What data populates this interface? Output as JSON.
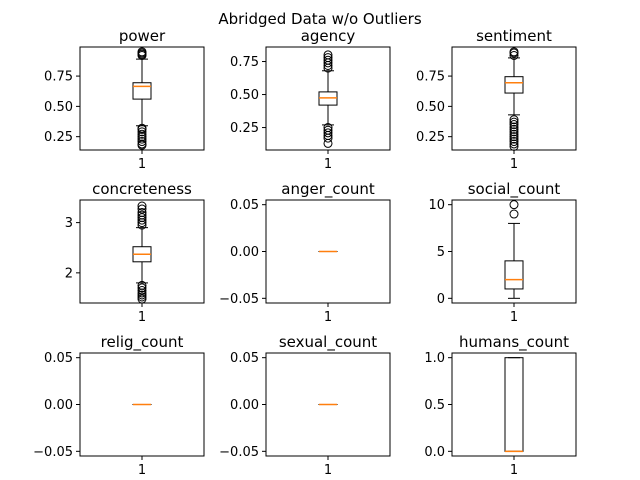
{
  "figure": {
    "suptitle": "Abridged Data w/o Outliers"
  },
  "colors": {
    "median": "#ff7f0e",
    "box": "#000000",
    "background": "#ffffff"
  },
  "chart_data": [
    {
      "type": "box",
      "title": "power",
      "categories": [
        "1"
      ],
      "ylim": [
        0.14,
        0.99
      ],
      "yticks": [
        0.25,
        0.5,
        0.75
      ],
      "yticklabels": [
        "0.25",
        "0.50",
        "0.75"
      ],
      "box": {
        "whislo": 0.34,
        "q1": 0.56,
        "med": 0.665,
        "q3": 0.695,
        "whishi": 0.89
      },
      "fliers": [
        0.18,
        0.19,
        0.21,
        0.23,
        0.25,
        0.27,
        0.29,
        0.31,
        0.32,
        0.92,
        0.93,
        0.94,
        0.95
      ]
    },
    {
      "type": "box",
      "title": "agency",
      "categories": [
        "1"
      ],
      "ylim": [
        0.08,
        0.86
      ],
      "yticks": [
        0.25,
        0.5,
        0.75
      ],
      "yticklabels": [
        "0.25",
        "0.50",
        "0.75"
      ],
      "box": {
        "whislo": 0.27,
        "q1": 0.42,
        "med": 0.475,
        "q3": 0.52,
        "whishi": 0.68
      },
      "fliers": [
        0.13,
        0.17,
        0.19,
        0.21,
        0.23,
        0.25,
        0.7,
        0.72,
        0.74,
        0.76,
        0.78,
        0.8
      ]
    },
    {
      "type": "box",
      "title": "sentiment",
      "categories": [
        "1"
      ],
      "ylim": [
        0.14,
        0.99
      ],
      "yticks": [
        0.25,
        0.5,
        0.75
      ],
      "yticklabels": [
        "0.25",
        "0.50",
        "0.75"
      ],
      "box": {
        "whislo": 0.43,
        "q1": 0.61,
        "med": 0.695,
        "q3": 0.745,
        "whishi": 0.9
      },
      "fliers": [
        0.17,
        0.19,
        0.21,
        0.23,
        0.25,
        0.27,
        0.29,
        0.31,
        0.33,
        0.35,
        0.37,
        0.39,
        0.92,
        0.94,
        0.95
      ]
    },
    {
      "type": "box",
      "title": "concreteness",
      "categories": [
        "1"
      ],
      "ylim": [
        1.4,
        3.45
      ],
      "yticks": [
        2,
        3
      ],
      "yticklabels": [
        "2",
        "3"
      ],
      "box": {
        "whislo": 1.8,
        "q1": 2.22,
        "med": 2.37,
        "q3": 2.52,
        "whishi": 2.9
      },
      "fliers": [
        1.48,
        1.52,
        1.56,
        1.6,
        1.65,
        1.7,
        1.75,
        2.95,
        3.0,
        3.05,
        3.1,
        3.15,
        3.2,
        3.27,
        3.33
      ]
    },
    {
      "type": "box",
      "title": "anger_count",
      "categories": [
        "1"
      ],
      "ylim": [
        -0.055,
        0.055
      ],
      "yticks": [
        -0.05,
        0.0,
        0.05
      ],
      "yticklabels": [
        "−0.05",
        "0.00",
        "0.05"
      ],
      "box": {
        "whislo": 0,
        "q1": 0,
        "med": 0,
        "q3": 0,
        "whishi": 0
      },
      "fliers": []
    },
    {
      "type": "box",
      "title": "social_count",
      "categories": [
        "1"
      ],
      "ylim": [
        -0.5,
        10.5
      ],
      "yticks": [
        0,
        5,
        10
      ],
      "yticklabels": [
        "0",
        "5",
        "10"
      ],
      "box": {
        "whislo": 0,
        "q1": 1,
        "med": 2,
        "q3": 4,
        "whishi": 8
      },
      "fliers": [
        9,
        10
      ]
    },
    {
      "type": "box",
      "title": "relig_count",
      "categories": [
        "1"
      ],
      "ylim": [
        -0.055,
        0.055
      ],
      "yticks": [
        -0.05,
        0.0,
        0.05
      ],
      "yticklabels": [
        "−0.05",
        "0.00",
        "0.05"
      ],
      "box": {
        "whislo": 0,
        "q1": 0,
        "med": 0,
        "q3": 0,
        "whishi": 0
      },
      "fliers": []
    },
    {
      "type": "box",
      "title": "sexual_count",
      "categories": [
        "1"
      ],
      "ylim": [
        -0.055,
        0.055
      ],
      "yticks": [
        -0.05,
        0.0,
        0.05
      ],
      "yticklabels": [
        "−0.05",
        "0.00",
        "0.05"
      ],
      "box": {
        "whislo": 0,
        "q1": 0,
        "med": 0,
        "q3": 0,
        "whishi": 0
      },
      "fliers": []
    },
    {
      "type": "box",
      "title": "humans_count",
      "categories": [
        "1"
      ],
      "ylim": [
        -0.05,
        1.05
      ],
      "yticks": [
        0.0,
        0.5,
        1.0
      ],
      "yticklabels": [
        "0.0",
        "0.5",
        "1.0"
      ],
      "box": {
        "whislo": 0,
        "q1": 0,
        "med": 0,
        "q3": 1,
        "whishi": 1
      },
      "fliers": []
    }
  ]
}
